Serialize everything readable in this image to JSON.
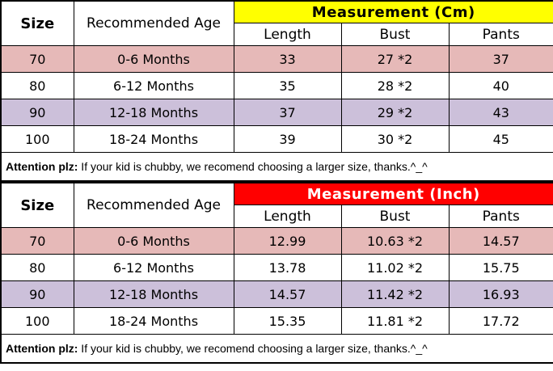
{
  "colors": {
    "row_pink": "#E6B9B8",
    "row_lavender": "#CCC0DA",
    "row_white": "#FFFFFF",
    "header_cm_bg": "#FFFF00",
    "header_cm_text": "#000000",
    "header_inch_bg": "#FF0000",
    "header_inch_text": "#FFFFFF",
    "border": "#000000"
  },
  "tables": [
    {
      "size_header": "Size",
      "age_header": "Recommended Age",
      "measurement_header": "Measurement (Cm)",
      "columns": [
        "Length",
        "Bust",
        "Pants"
      ],
      "rows": [
        {
          "size": "70",
          "age": "0-6 Months",
          "length": "33",
          "bust": "27 *2",
          "pants": "37"
        },
        {
          "size": "80",
          "age": "6-12 Months",
          "length": "35",
          "bust": "28 *2",
          "pants": "40"
        },
        {
          "size": "90",
          "age": "12-18 Months",
          "length": "37",
          "bust": "29 *2",
          "pants": "43"
        },
        {
          "size": "100",
          "age": "18-24 Months",
          "length": "39",
          "bust": "30 *2",
          "pants": "45"
        }
      ],
      "note_bold": "Attention plz:",
      "note_text": " If your kid is chubby, we recomend choosing a larger size, thanks.^_^"
    },
    {
      "size_header": "Size",
      "age_header": "Recommended Age",
      "measurement_header": "Measurement (Inch)",
      "columns": [
        "Length",
        "Bust",
        "Pants"
      ],
      "rows": [
        {
          "size": "70",
          "age": "0-6 Months",
          "length": "12.99",
          "bust": "10.63 *2",
          "pants": "14.57"
        },
        {
          "size": "80",
          "age": "6-12 Months",
          "length": "13.78",
          "bust": "11.02 *2",
          "pants": "15.75"
        },
        {
          "size": "90",
          "age": "12-18 Months",
          "length": "14.57",
          "bust": "11.42 *2",
          "pants": "16.93"
        },
        {
          "size": "100",
          "age": "18-24 Months",
          "length": "15.35",
          "bust": "11.81 *2",
          "pants": "17.72"
        }
      ],
      "note_bold": "Attention plz:",
      "note_text": " If your kid is chubby, we recomend choosing a larger size, thanks.^_^"
    }
  ]
}
